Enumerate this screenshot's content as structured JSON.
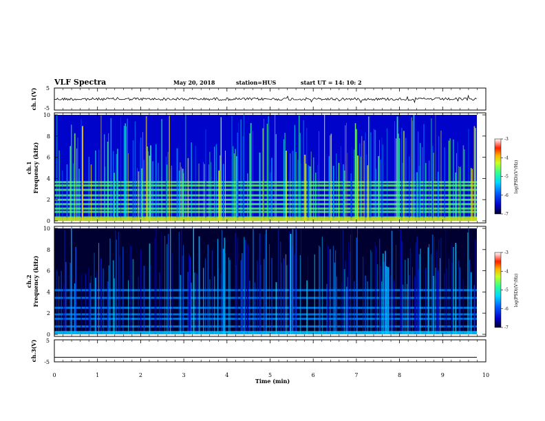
{
  "header": {
    "title": "VLF Spectra",
    "date": "May 20, 2018",
    "station": "station=HUS",
    "start_ut": "start  UT =   14: 10: 2"
  },
  "chart_data": [
    {
      "type": "line",
      "name": "ch1-waveform",
      "ylabel": "ch.1(V)",
      "xlim": [
        0,
        10
      ],
      "ylim": [
        -5,
        5
      ],
      "yticks": [
        "5",
        "-5"
      ],
      "description_values": {
        "baseline_v": 0,
        "amplitude_v": 0.6
      }
    },
    {
      "type": "heatmap",
      "name": "ch1-spectrogram",
      "ylabel_top": "ch.1",
      "ylabel": "Frequency  (kHz)",
      "ylim": [
        0,
        10
      ],
      "yticks": [
        "0",
        "2",
        "4",
        "6",
        "8",
        "10"
      ],
      "colorbar": {
        "label": "log(PSD)(V²/Hz)",
        "ticks": [
          "-3",
          "-4",
          "-5",
          "-6",
          "-7"
        ],
        "range": [
          -7,
          -3
        ]
      },
      "bands_khz": [
        0.3,
        0.5,
        1.0,
        1.3,
        1.7,
        2.1,
        2.5,
        3.0,
        3.4,
        3.7
      ],
      "level": -5.9
    },
    {
      "type": "heatmap",
      "name": "ch2-spectrogram",
      "ylabel_top": "ch.2",
      "ylabel": "Frequency  (kHz)",
      "ylim": [
        0,
        10
      ],
      "yticks": [
        "0",
        "2",
        "4",
        "6",
        "8",
        "10"
      ],
      "colorbar": {
        "label": "log(PSD)(V²/Hz)",
        "ticks": [
          "-3",
          "-4",
          "-5",
          "-6",
          "-7"
        ],
        "range": [
          -7,
          -3
        ]
      },
      "bands_khz": [
        0.3,
        0.9,
        1.6,
        2.0,
        2.6,
        3.5,
        4.2
      ],
      "level": -6.5
    },
    {
      "type": "line",
      "name": "ch3-waveform",
      "ylabel": "ch.3(V)",
      "xlim": [
        0,
        10
      ],
      "ylim": [
        -5,
        5
      ],
      "yticks": [
        "5",
        "-5"
      ],
      "description_values": {
        "baseline_v": -2,
        "amplitude_v": 0
      }
    }
  ],
  "xaxis": {
    "label": "Time  (min)",
    "ticks": [
      "0",
      "1",
      "2",
      "3",
      "4",
      "5",
      "6",
      "7",
      "8",
      "9",
      "10"
    ]
  }
}
